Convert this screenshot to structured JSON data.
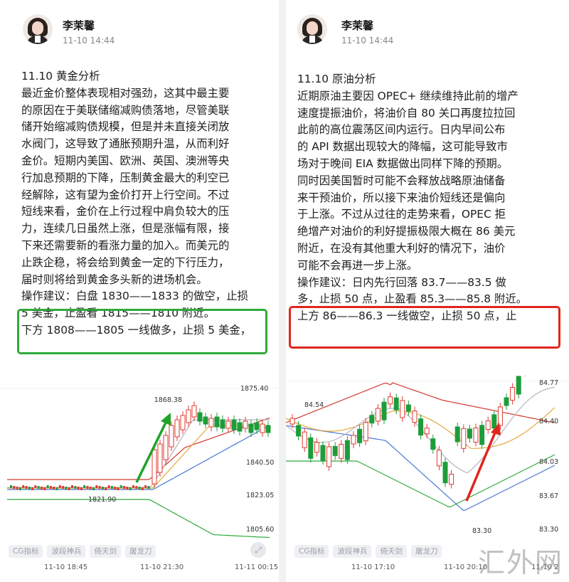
{
  "left_post": {
    "author": "李茉馨",
    "time": "11-10 14:44",
    "title": "11.10 黄金分析",
    "lines": [
      "最近金价整体表现相对强劲，这其中最主要",
      "的原因在于美联储缩减购债落地，尽管美联",
      "储开始缩减购债规模，但是并未直接关闭放",
      "水阀门，这导致了通胀预期升温，从而利好",
      "金价。短期内美国、欧洲、英国、澳洲等央",
      "行加息预期的下降，压制黄金最大的利空已",
      "经解除，这有望为金价打开上行空间。不过",
      "短线来看，金价在上行过程中肩负较大的压",
      "力，连续几日虽然上涨，但是涨幅有限，接",
      "下来还需要新的看涨力量的加入。而美元的",
      "止跌企稳，将会给到黄金一定的下行压力，",
      "届时则将给到黄金多头新的进场机会。",
      "操作建议：白盘 1830——1833 的做空，止损",
      "5 美金，止盈看 1815——1810 附近。",
      "下方 1808——1805 一线做多，止损 5 美金，"
    ],
    "highlight_color": "#2faa3a"
  },
  "right_post": {
    "author": "李茉馨",
    "time": "11-10 14:44",
    "title": "11.10 原油分析",
    "lines": [
      "近期原油主要因 OPEC+ 继续维持此前的增产",
      "速度提振油价，将油价自 80 关口再度拉拉回",
      "此前的高位震荡区间内运行。日内早间公布",
      "的 API 数据出现较大的降幅，这可能导致市",
      "场对于晚间 EIA 数据做出同样下降的预期。",
      "同时因美国暂时可能不会释放战略原油储备",
      "来干预油价，所以接下来油价短线还是偏向",
      "于上涨。不过从过往的走势来看，OPEC 拒",
      "绝增产对油价的利好提振极限大概在 86 美元",
      "附近，在没有其他重大利好的情况下，油价",
      "可能不会再进一步上涨。",
      "操作建议：日内先行回落 83.7——83.5 做",
      "多，止损 50 点，止盈看 85.3——85.8 附近。",
      "上方 86——86.3 一线做空，止损 50 点，止"
    ],
    "highlight_color": "#e0261c"
  },
  "gold_chart": {
    "price_labels": [
      "1875.40",
      "1840.50",
      "1823.05",
      "1805.60"
    ],
    "high_label": "1868.38",
    "low_label": "1821.90",
    "times": [
      "11-10 18:45",
      "11-10 21:30",
      "11-11 00:15"
    ],
    "arrow_color": "#1fa329"
  },
  "oil_chart": {
    "price_labels": [
      "84.77",
      "84.40",
      "84.03",
      "83.67",
      "83.30"
    ],
    "high_label": "84.54",
    "low_label": "83.30",
    "times": [
      "11-10 17:10",
      "11-10 20:10",
      "11-10 2"
    ],
    "arrow_color": "#e0261c"
  },
  "toolbar": {
    "items": [
      "CG指标",
      "波段神兵",
      "倚天剑",
      "屠龙刀"
    ]
  },
  "fullscreen_icon": "expand-icon",
  "watermark": "汇外网",
  "colors": {
    "candle_up": "#e03a32",
    "candle_down": "#1d9d3a",
    "band_upper": "#d23a30",
    "band_lower": "#2fa83a",
    "ma_fast": "#b8b3c0",
    "ma_mid": "#e6a93c",
    "ma_slow": "#4a78d6"
  }
}
